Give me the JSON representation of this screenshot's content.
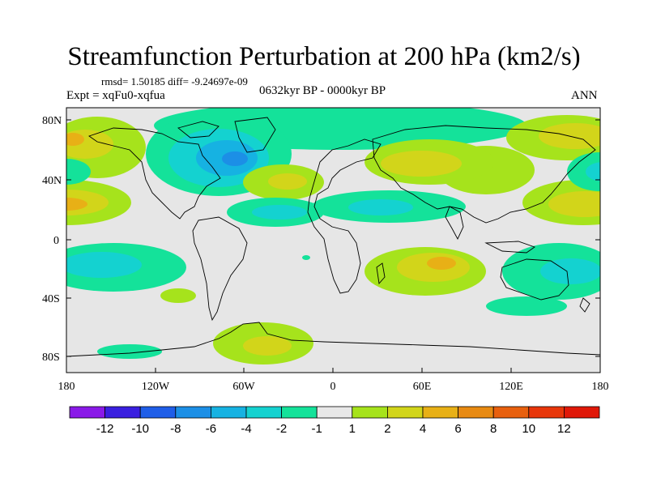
{
  "header": {
    "title": "Streamfunction Perturbation at 200 hPa (km2/s)",
    "stats": "rmsd= 1.50185 diff= -9.24697e-09",
    "experiment": "Expt = xqFu0-xqfua",
    "period": "0632kyr BP - 0000kyr BP",
    "season": "ANN"
  },
  "axes": {
    "lat_labels": [
      "80N",
      "40N",
      "0",
      "40S",
      "80S"
    ],
    "lon_labels": [
      "180",
      "120W",
      "60W",
      "0",
      "60E",
      "120E",
      "180"
    ]
  },
  "colorbar": {
    "labels": [
      "-12",
      "-10",
      "-8",
      "-6",
      "-4",
      "-2",
      "-1",
      "1",
      "2",
      "4",
      "6",
      "8",
      "10",
      "12"
    ],
    "colors": [
      "#8a19e8",
      "#3a1fe0",
      "#1f5ee8",
      "#1c8fe6",
      "#16b2e2",
      "#14d2d0",
      "#14e29a",
      "#e8e8e8",
      "#a6e31c",
      "#d2d51a",
      "#e8b016",
      "#e88a12",
      "#e8600e",
      "#e8360a",
      "#e01808"
    ]
  },
  "colors": {
    "background": "#e6e6e6",
    "coast": "#000000"
  }
}
